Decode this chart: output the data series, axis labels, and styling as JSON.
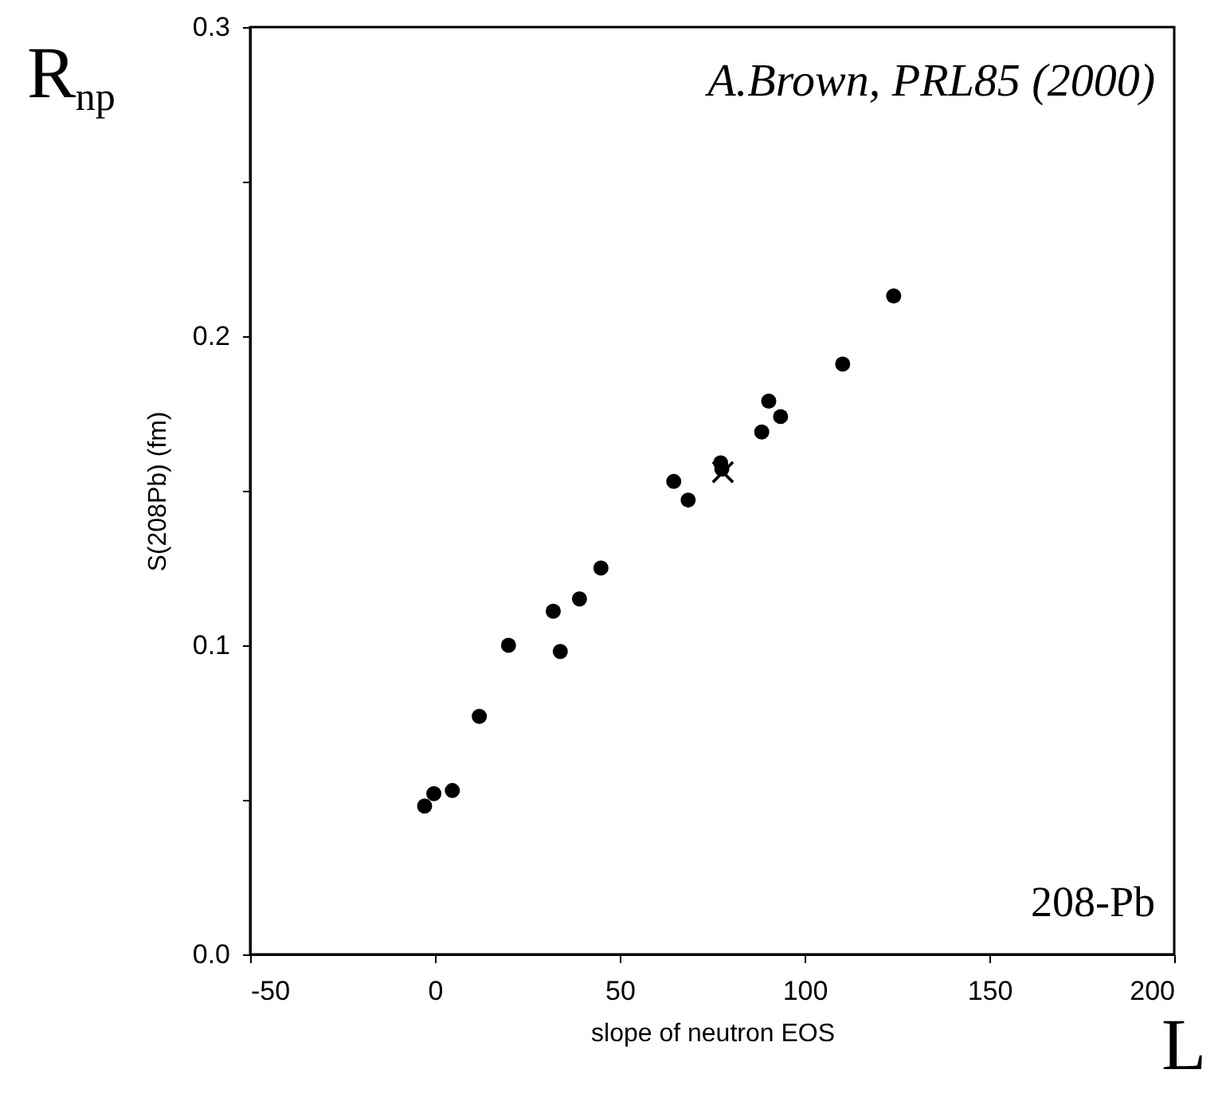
{
  "chart_data": {
    "type": "scatter",
    "xlabel": "slope of neutron EOS",
    "ylabel": "S(208Pb) (fm)",
    "annotations": [
      "A.Brown, PRL85 (2000)",
      "208-Pb",
      "R$_{np}$",
      "L"
    ],
    "xlim": [
      -50,
      200
    ],
    "ylim": [
      0,
      0.3
    ],
    "xticks": [
      {
        "value": -50,
        "label": "-50"
      },
      0,
      50,
      100,
      150,
      200
    ],
    "yticks": [
      {
        "value": 0,
        "label": "0.0"
      },
      {
        "value": 0.05,
        "label": null
      },
      {
        "value": 0.1,
        "label": "0.1"
      },
      {
        "value": 0.15,
        "label": null
      },
      {
        "value": 0.2,
        "label": "0.2"
      },
      {
        "value": 0.25,
        "label": null
      },
      {
        "value": 0.3,
        "label": "0.3"
      }
    ],
    "grid": false,
    "series": [
      {
        "color": "#000000",
        "marker": "circle",
        "x": [
          124.1,
          110.3,
          90.3,
          93.5,
          88.4,
          77.3,
          77.6,
          64.6,
          68.5,
          44.9,
          39.1,
          32.0,
          33.9,
          19.9,
          12.0,
          4.7,
          -0.3,
          -2.8
        ],
        "values": [
          0.213,
          0.191,
          0.179,
          0.174,
          0.169,
          0.159,
          0.157,
          0.153,
          0.147,
          0.125,
          0.115,
          0.111,
          0.098,
          0.1,
          0.077,
          0.053,
          0.052,
          0.048
        ]
      },
      {
        "color": "#000000",
        "marker": "cross",
        "x": [
          77.9
        ],
        "values": [
          0.156
        ]
      }
    ]
  }
}
